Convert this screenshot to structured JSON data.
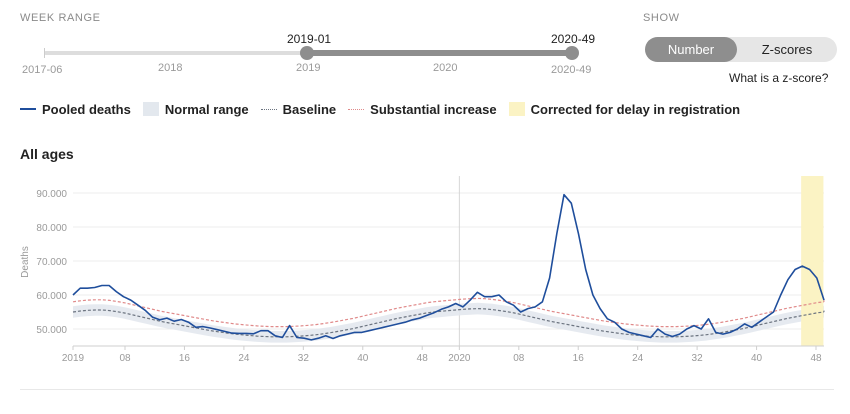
{
  "week_range": {
    "title": "WEEK RANGE",
    "start_label": "2019-01",
    "end_label": "2020-49",
    "min_label": "2017-06",
    "max_label": "2020-49",
    "year_ticks": [
      "2018",
      "2019",
      "2020"
    ]
  },
  "show": {
    "title": "SHOW",
    "options": [
      "Number",
      "Z-scores"
    ],
    "selected": "Number",
    "help_link": "What is a z-score?"
  },
  "legend": {
    "pooled": "Pooled deaths",
    "normal": "Normal range",
    "baseline": "Baseline",
    "substantial": "Substantial increase",
    "corrected": "Corrected for delay in registration"
  },
  "colors": {
    "pooled": "#1f4e9c",
    "normal": "#e3e8ee",
    "baseline": "#6c7480",
    "substantial": "#e08a8a",
    "corrected": "#fbf3c4",
    "accent": "#8e8e8e"
  },
  "chart_data": {
    "type": "line",
    "title": "All ages",
    "ylabel": "Deaths",
    "ylim": [
      45000,
      95000
    ],
    "yticks": [
      50000,
      60000,
      70000,
      80000,
      90000
    ],
    "ytick_labels": [
      "50.000",
      "60.000",
      "70.000",
      "80.000",
      "90.000"
    ],
    "x_start": 1,
    "x_end": 101,
    "year_break": 53,
    "xticks": [
      {
        "x": 1,
        "label": "2019"
      },
      {
        "x": 8,
        "label": "08"
      },
      {
        "x": 16,
        "label": "16"
      },
      {
        "x": 24,
        "label": "24"
      },
      {
        "x": 32,
        "label": "32"
      },
      {
        "x": 40,
        "label": "40"
      },
      {
        "x": 48,
        "label": "48"
      },
      {
        "x": 53,
        "label": "2020"
      },
      {
        "x": 61,
        "label": "08"
      },
      {
        "x": 69,
        "label": "16"
      },
      {
        "x": 77,
        "label": "24"
      },
      {
        "x": 85,
        "label": "32"
      },
      {
        "x": 93,
        "label": "40"
      },
      {
        "x": 101,
        "label": "48"
      }
    ],
    "corrected_range": [
      99,
      102
    ],
    "series": [
      {
        "name": "Pooled deaths",
        "values": [
          60000,
          62000,
          62000,
          62200,
          62800,
          62800,
          61000,
          59500,
          58500,
          57000,
          55500,
          53500,
          52700,
          53200,
          52300,
          52800,
          52000,
          50500,
          50700,
          50300,
          49800,
          49300,
          48800,
          48700,
          48700,
          48600,
          49500,
          49500,
          48000,
          47500,
          51000,
          47500,
          47300,
          46800,
          47300,
          48000,
          47200,
          48000,
          48500,
          49000,
          49000,
          49500,
          50000,
          50500,
          51000,
          51500,
          52000,
          52700,
          53200,
          54000,
          54800,
          55800,
          56500,
          57500,
          56500,
          58500,
          60800,
          59500,
          59500,
          60000,
          58000,
          57000,
          55000,
          56000,
          56500,
          58000,
          65000,
          78000,
          89500,
          87000,
          78000,
          67500,
          60000,
          56000,
          53000,
          52000,
          50000,
          49000,
          48500,
          48000,
          47500,
          50000,
          48500,
          47800,
          48500,
          50000,
          51000,
          50000,
          53000,
          49000,
          48500,
          49000,
          50000,
          51500,
          50500,
          52000,
          53500,
          55000,
          60000,
          64500,
          67500,
          68500,
          67500,
          65000,
          58500
        ]
      },
      {
        "name": "Baseline",
        "values": [
          55000,
          55300,
          55500,
          55600,
          55600,
          55400,
          55100,
          54700,
          54200,
          53700,
          53200,
          52700,
          52200,
          51800,
          51400,
          51000,
          50600,
          50200,
          49800,
          49400,
          49100,
          48800,
          48500,
          48300,
          48100,
          47900,
          47800,
          47700,
          47700,
          47700,
          47800,
          47900,
          48100,
          48300,
          48600,
          48900,
          49300,
          49700,
          50100,
          50600,
          51100,
          51600,
          52100,
          52600,
          53100,
          53500,
          53900,
          54300,
          54700,
          55000,
          55200,
          55400,
          55600,
          55800,
          55900,
          56000,
          55900,
          55700,
          55400,
          55100,
          54700,
          54200,
          53700,
          53200,
          52700,
          52200,
          51800,
          51400,
          51000,
          50600,
          50200,
          49800,
          49400,
          49100,
          48800,
          48500,
          48300,
          48100,
          47900,
          47800,
          47700,
          47700,
          47700,
          47800,
          47900,
          48100,
          48300,
          48600,
          48900,
          49300,
          49700,
          50100,
          50600,
          51100,
          51600,
          52100,
          52600,
          53100,
          53500,
          53900,
          54300,
          54700,
          55000,
          55200,
          55400
        ]
      }
    ],
    "band_halfwidth": 1700,
    "substantial_offset": 3000
  }
}
